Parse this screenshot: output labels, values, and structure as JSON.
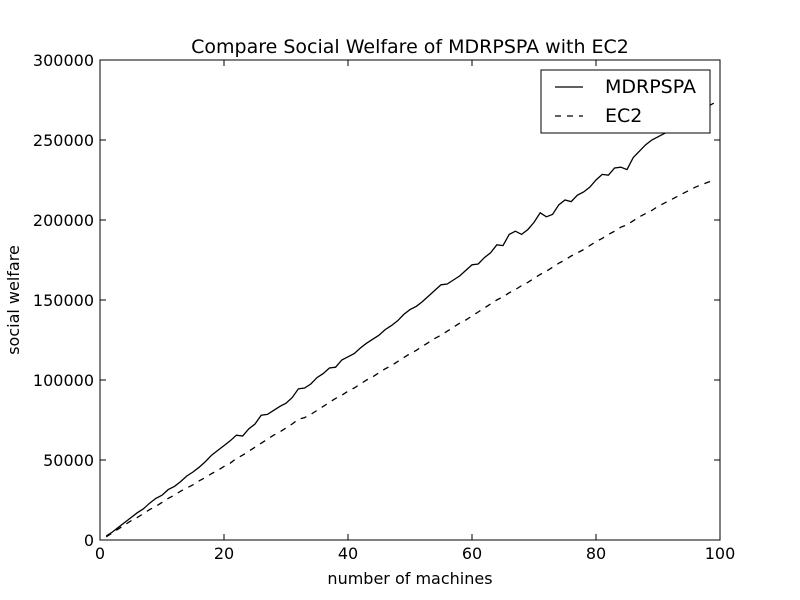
{
  "chart_data": {
    "type": "line",
    "title": "Compare Social Welfare of  MDRPSPA with EC2",
    "xlabel": "number of machines",
    "ylabel": "social welfare",
    "xlim": [
      0,
      100
    ],
    "ylim": [
      0,
      300000
    ],
    "xticks": [
      0,
      20,
      40,
      60,
      80,
      100
    ],
    "xtick_labels": [
      "0",
      "20",
      "40",
      "60",
      "80",
      "100"
    ],
    "yticks": [
      0,
      50000,
      100000,
      150000,
      200000,
      250000,
      300000
    ],
    "ytick_labels": [
      "0",
      "50000",
      "100000",
      "150000",
      "200000",
      "250000",
      "300000"
    ],
    "grid": false,
    "legend_position": "upper right",
    "x": [
      1,
      2,
      3,
      4,
      5,
      6,
      7,
      8,
      9,
      10,
      11,
      12,
      13,
      14,
      15,
      16,
      17,
      18,
      19,
      20,
      21,
      22,
      23,
      24,
      25,
      26,
      27,
      28,
      29,
      30,
      31,
      32,
      33,
      34,
      35,
      36,
      37,
      38,
      39,
      40,
      41,
      42,
      43,
      44,
      45,
      46,
      47,
      48,
      49,
      50,
      51,
      52,
      53,
      54,
      55,
      56,
      57,
      58,
      59,
      60,
      61,
      62,
      63,
      64,
      65,
      66,
      67,
      68,
      69,
      70,
      71,
      72,
      73,
      74,
      75,
      76,
      77,
      78,
      79,
      80,
      81,
      82,
      83,
      84,
      85,
      86,
      87,
      88,
      89,
      90,
      91,
      92,
      93,
      94,
      95,
      96,
      97,
      98,
      99
    ],
    "series": [
      {
        "name": "MDRPSPA",
        "style": "solid",
        "color": "#000000",
        "values": [
          2500,
          5000,
          8000,
          11000,
          14000,
          17000,
          19500,
          23000,
          26000,
          28000,
          31500,
          33500,
          36500,
          40000,
          42500,
          45500,
          49000,
          53000,
          56000,
          59000,
          62000,
          65500,
          65000,
          69500,
          72500,
          78000,
          78500,
          81000,
          83500,
          85500,
          89000,
          94500,
          95000,
          97500,
          101500,
          104000,
          107500,
          108000,
          112500,
          114500,
          116500,
          120000,
          123000,
          125500,
          128000,
          131500,
          134000,
          137000,
          141000,
          144000,
          146000,
          149000,
          152500,
          156000,
          159500,
          160000,
          162500,
          165000,
          168500,
          172000,
          172500,
          176500,
          179500,
          184500,
          184000,
          191000,
          193000,
          191000,
          194000,
          198500,
          204500,
          202000,
          203500,
          209500,
          212500,
          211500,
          215500,
          217500,
          220500,
          225000,
          228500,
          228000,
          232500,
          233000,
          231500,
          239000,
          243000,
          247000,
          250000,
          252000,
          254000,
          256000,
          258000,
          260000,
          262000,
          265000,
          268000,
          271000,
          273000
        ]
      },
      {
        "name": "EC2",
        "style": "dashed",
        "color": "#000000",
        "values": [
          2000,
          4500,
          7000,
          9500,
          12000,
          14000,
          16500,
          19000,
          21000,
          23500,
          26000,
          28000,
          30500,
          32500,
          34500,
          37000,
          39000,
          41500,
          43500,
          46000,
          48000,
          51000,
          53000,
          55500,
          58000,
          60500,
          63000,
          65500,
          67500,
          70000,
          72500,
          75500,
          76500,
          78500,
          81000,
          83500,
          86000,
          88500,
          90500,
          93000,
          95000,
          97500,
          100000,
          102000,
          104500,
          107000,
          109000,
          111500,
          114000,
          116500,
          118500,
          121000,
          123500,
          126000,
          128000,
          130500,
          133000,
          135500,
          137500,
          140000,
          142500,
          145000,
          147500,
          150000,
          152000,
          154500,
          156500,
          159000,
          161000,
          163500,
          166000,
          168000,
          170500,
          173000,
          175000,
          177500,
          179500,
          181500,
          184000,
          186500,
          188500,
          191000,
          193000,
          195500,
          197000,
          199500,
          202000,
          204000,
          206000,
          208500,
          210500,
          212500,
          214500,
          216500,
          218500,
          220500,
          222000,
          223500,
          225000
        ]
      }
    ]
  }
}
